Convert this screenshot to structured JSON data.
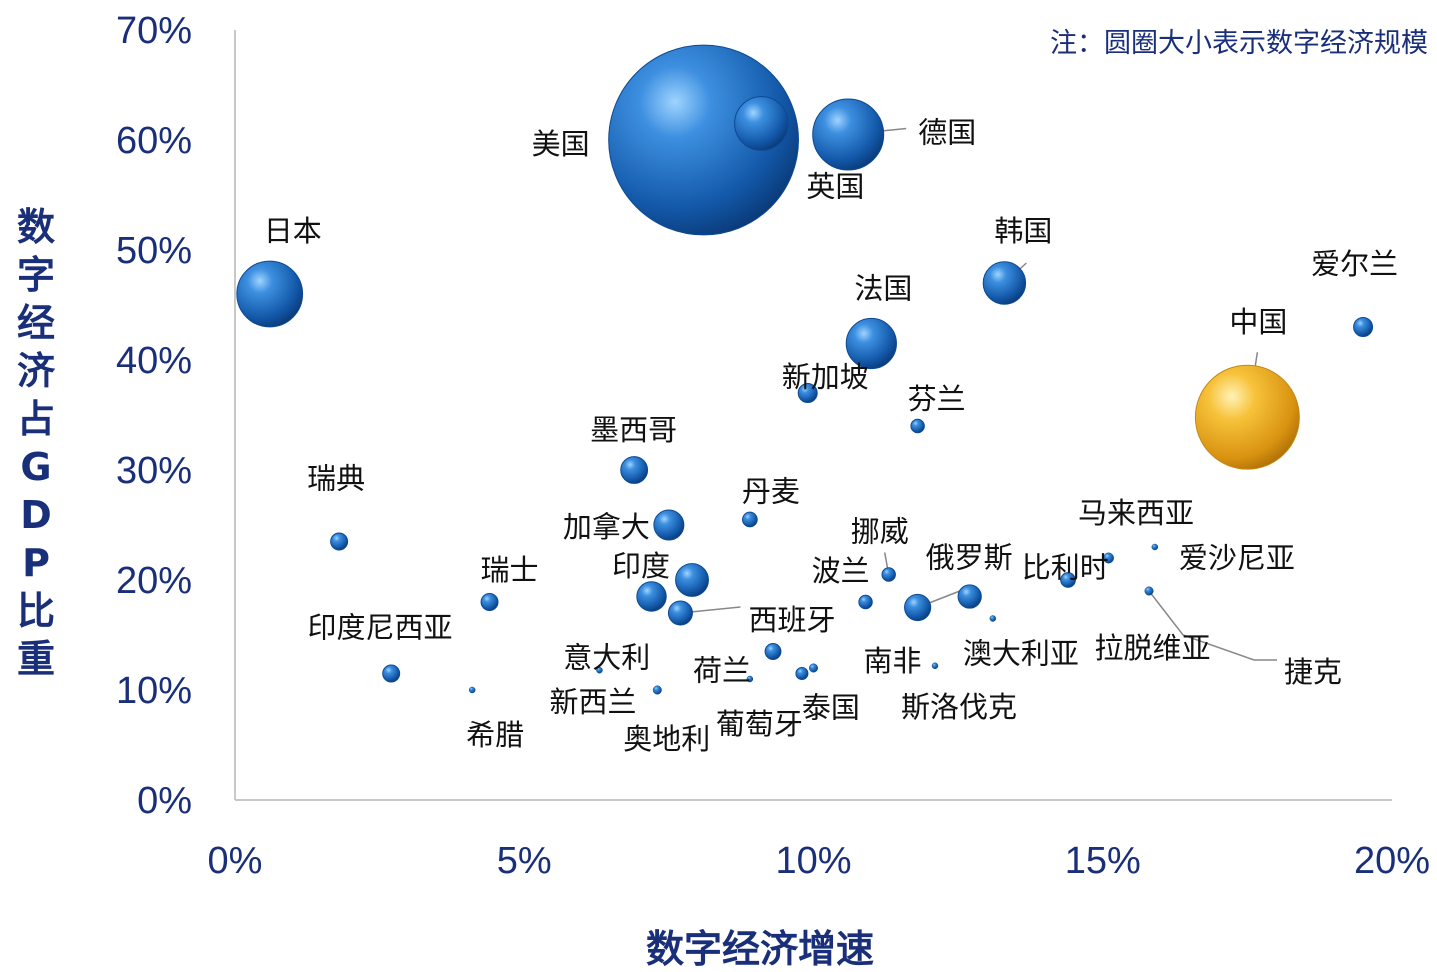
{
  "chart_data": {
    "type": "scatter",
    "subtype": "bubble",
    "note": "注：圆圈大小表示数字经济规模",
    "xlabel": "数字经济增速",
    "ylabel": "数字经济占GDP比重",
    "xlim": [
      0,
      20
    ],
    "ylim": [
      0,
      70
    ],
    "x_unit": "%",
    "y_unit": "%",
    "x_ticks": [
      "0%",
      "5%",
      "10%",
      "15%",
      "20%"
    ],
    "y_ticks": [
      "0%",
      "10%",
      "20%",
      "30%",
      "40%",
      "50%",
      "60%",
      "70%"
    ],
    "grid": false,
    "colors": {
      "default": "#1f6fc0",
      "highlight": "#f2b124",
      "axis_text": "#1a2f7a"
    },
    "points": [
      {
        "label": "美国",
        "x": 8.1,
        "y": 60.0,
        "size": 100,
        "highlight": false
      },
      {
        "label": "英国",
        "x": 9.1,
        "y": 61.5,
        "size": 8,
        "highlight": false
      },
      {
        "label": "德国",
        "x": 10.6,
        "y": 60.5,
        "size": 14,
        "highlight": false
      },
      {
        "label": "日本",
        "x": 0.6,
        "y": 46.0,
        "size": 12,
        "highlight": false
      },
      {
        "label": "韩国",
        "x": 13.3,
        "y": 47.0,
        "size": 5,
        "highlight": false
      },
      {
        "label": "爱尔兰",
        "x": 19.5,
        "y": 43.0,
        "size": 1,
        "highlight": false
      },
      {
        "label": "法国",
        "x": 11.0,
        "y": 41.5,
        "size": 7,
        "highlight": false
      },
      {
        "label": "中国",
        "x": 17.5,
        "y": 34.8,
        "size": 30,
        "highlight": true
      },
      {
        "label": "新加坡",
        "x": 9.9,
        "y": 37.0,
        "size": 1,
        "highlight": false
      },
      {
        "label": "芬兰",
        "x": 11.8,
        "y": 34.0,
        "size": 0.5,
        "highlight": false
      },
      {
        "label": "墨西哥",
        "x": 6.9,
        "y": 30.0,
        "size": 2,
        "highlight": false
      },
      {
        "label": "加拿大",
        "x": 7.5,
        "y": 25.0,
        "size": 2.5,
        "highlight": false
      },
      {
        "label": "丹麦",
        "x": 8.9,
        "y": 25.5,
        "size": 0.6,
        "highlight": false
      },
      {
        "label": "瑞典",
        "x": 1.8,
        "y": 23.5,
        "size": 0.8,
        "highlight": false
      },
      {
        "label": "瑞士",
        "x": 4.4,
        "y": 18.0,
        "size": 0.8,
        "highlight": false
      },
      {
        "label": "印度",
        "x": 7.9,
        "y": 20.0,
        "size": 3,
        "highlight": false
      },
      {
        "label": "印度尼西亚",
        "x": 7.2,
        "y": 18.5,
        "size": 2.4,
        "highlight": false
      },
      {
        "label": "西班牙",
        "x": 7.7,
        "y": 17.0,
        "size": 1.6,
        "highlight": false
      },
      {
        "label": "挪威",
        "x": 11.3,
        "y": 20.5,
        "size": 0.5,
        "highlight": false
      },
      {
        "label": "波兰",
        "x": 10.9,
        "y": 18.0,
        "size": 0.5,
        "highlight": false
      },
      {
        "label": "俄罗斯",
        "x": 11.8,
        "y": 17.5,
        "size": 1.9,
        "highlight": false
      },
      {
        "label": "比利时",
        "x": 12.7,
        "y": 18.5,
        "size": 1.5,
        "highlight": false
      },
      {
        "label": "马来西亚",
        "x": 14.4,
        "y": 20.0,
        "size": 0.6,
        "highlight": false
      },
      {
        "label": "爱沙尼亚",
        "x": 15.9,
        "y": 23.0,
        "size": 0.1,
        "highlight": false
      },
      {
        "label": "拉脱维亚",
        "x": 15.1,
        "y": 22.0,
        "size": 0.3,
        "highlight": false
      },
      {
        "label": "捷克",
        "x": 15.8,
        "y": 19.0,
        "size": 0.2,
        "highlight": false
      },
      {
        "label": "意大利",
        "x": 2.7,
        "y": 11.5,
        "size": 0.8,
        "highlight": false
      },
      {
        "label": "新西兰",
        "x": 6.3,
        "y": 11.8,
        "size": 0.1,
        "highlight": false
      },
      {
        "label": "希腊",
        "x": 4.1,
        "y": 10.0,
        "size": 0.1,
        "highlight": false
      },
      {
        "label": "荷兰",
        "x": 9.3,
        "y": 13.5,
        "size": 0.7,
        "highlight": false
      },
      {
        "label": "奥地利",
        "x": 7.3,
        "y": 10.0,
        "size": 0.2,
        "highlight": false
      },
      {
        "label": "葡萄牙",
        "x": 8.9,
        "y": 11.0,
        "size": 0.1,
        "highlight": false
      },
      {
        "label": "泰国",
        "x": 9.8,
        "y": 11.5,
        "size": 0.4,
        "highlight": false
      },
      {
        "label": "南非",
        "x": 10.0,
        "y": 12.0,
        "size": 0.2,
        "highlight": false
      },
      {
        "label": "斯洛伐克",
        "x": 12.1,
        "y": 12.2,
        "size": 0.05,
        "highlight": false
      },
      {
        "label": "澳大利亚",
        "x": 13.1,
        "y": 16.5,
        "size": 0.05,
        "highlight": false
      }
    ]
  }
}
